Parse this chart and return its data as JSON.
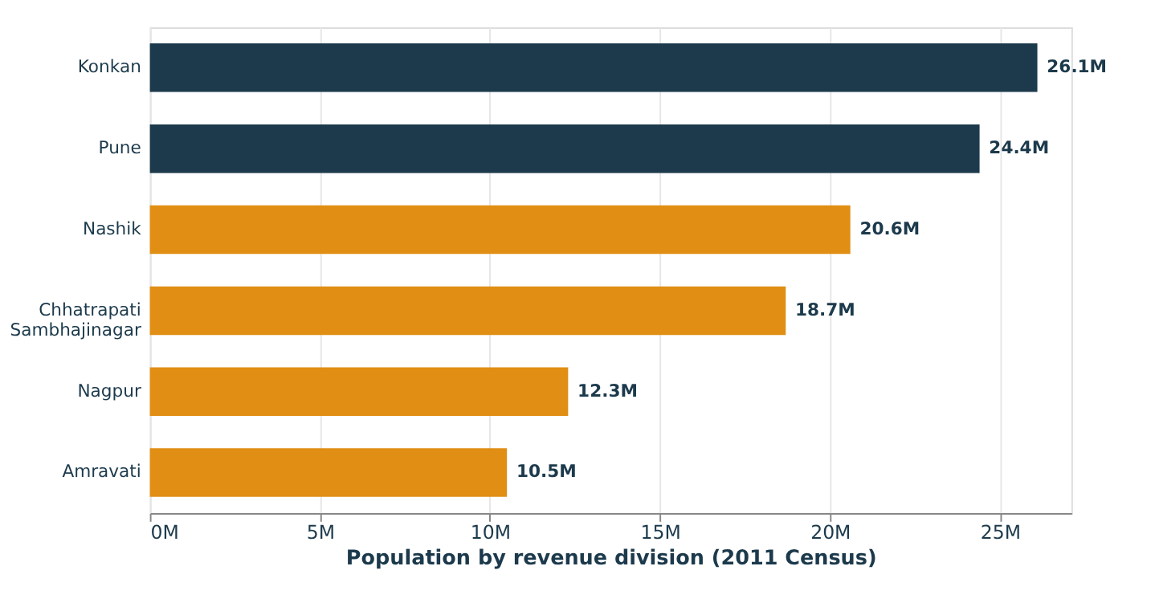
{
  "chart_data": {
    "type": "bar",
    "orientation": "horizontal",
    "xlabel": "Population by revenue division (2011 Census)",
    "categories": [
      "Konkan",
      "Pune",
      "Nashik",
      "Chhatrapati Sambhajinagar",
      "Nagpur",
      "Amravati"
    ],
    "values": [
      26.1,
      24.4,
      20.6,
      18.7,
      12.3,
      10.5
    ],
    "colors": [
      "#1c3a4c",
      "#1c3a4c",
      "#e08e14",
      "#e08e14",
      "#e08e14",
      "#e08e14"
    ],
    "value_labels": [
      "26.1M",
      "24.4M",
      "20.6M",
      "18.7M",
      "12.3M",
      "10.5M"
    ],
    "xlim": [
      0,
      27.1
    ],
    "xticks": [
      {
        "value": 0,
        "label": "0M"
      },
      {
        "value": 5,
        "label": "5M"
      },
      {
        "value": 10,
        "label": "10M"
      },
      {
        "value": 15,
        "label": "15M"
      },
      {
        "value": 20,
        "label": "20M"
      },
      {
        "value": 25,
        "label": "25M"
      }
    ],
    "grid": "x"
  }
}
